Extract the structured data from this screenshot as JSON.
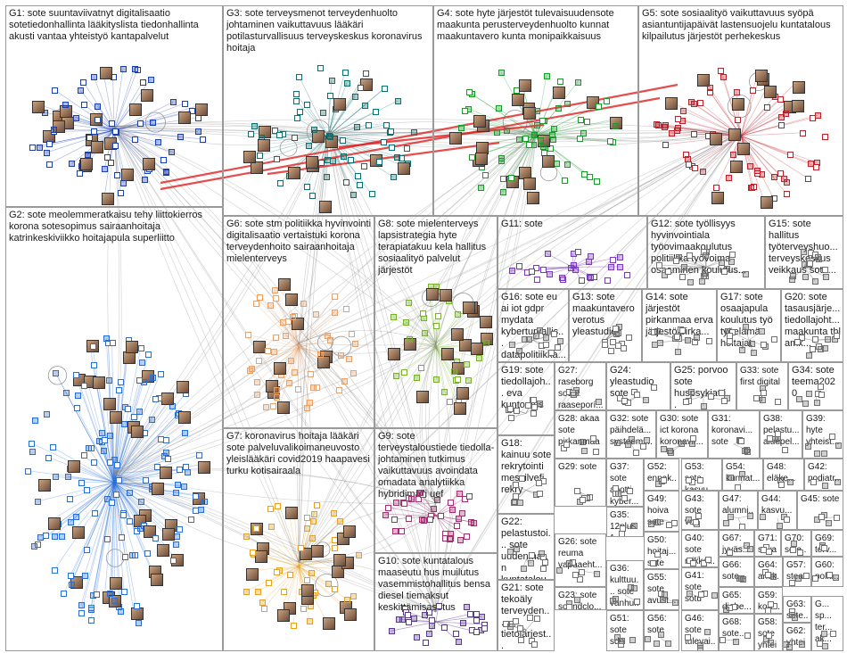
{
  "graph_title": "",
  "groups": [
    {
      "id": "G1",
      "label": "G1: sote suuntaviivatnyt digitalisaatio sotetiedonhallinta lääkityslista tiedonhallinta akusti vantaa yhteistyö kantapalvelut",
      "color": "#1a3fb0"
    },
    {
      "id": "G2",
      "label": "G2: sote meolemmeratkaisu tehy liittokierros korona sotesopimus sairaanhoitaja katrinkeskiviikko hoitajapula superliitto",
      "color": "#2a6fd6"
    },
    {
      "id": "G3",
      "label": "G3: sote terveysmenot terveydenhuolto johtaminen vaikuttavuus lääkäri potilasturvallisuus terveyskeskus koronavirus hoitaja",
      "color": "#0f6e6e"
    },
    {
      "id": "G4",
      "label": "G4: sote hyte järjestöt tulevaisuudensote maakunta perusterveydenhuolto kunnat maakuntavero kunta monipaikkaisuus",
      "color": "#1a9a2a"
    },
    {
      "id": "G5",
      "label": "G5: sote sosiaalityö vaikuttavuus syöpä asiantuntijapäivät lastensuojelu kuntatalous kilpailutus järjestöt perhekeskus",
      "color": "#c0202a"
    },
    {
      "id": "G6",
      "label": "G6: sote stm politiikka hyvinvointi digitalisaatio vertaistuki korona terveydenhoito sairaanhoitaja mielenterveys",
      "color": "#f0a060"
    },
    {
      "id": "G7",
      "label": "G7: koronavirus hoitaja lääkäri sote palveluvalikoimaneuvosto yleislääkäri covid2019 haapavesi turku kotisairaala",
      "color": "#e8a020"
    },
    {
      "id": "G8",
      "label": "G8: sote mielenterveys lapsistrategia hyte terapiatakuu kela hallitus sosiaalityö palvelut järjestöt",
      "color": "#7ab030"
    },
    {
      "id": "G9",
      "label": "G9: sote terveystaloustiede tiedolla­johtaminen tutkimus vaikuttavuus avoindata omadata analytiikka hybridimalli uef",
      "color": "#a03070"
    },
    {
      "id": "G10",
      "label": "G10: sote kuntatalous maaseutu hus muilutus vasemmistohallitus bensa diesel tiemaksut keskittämisasetus",
      "color": "#5a3a8a"
    },
    {
      "id": "G11",
      "label": "G11: sote",
      "color": "#7a3ac0"
    },
    {
      "id": "G12",
      "label": "G12: sote työllisyys hyvinvointiala työovimaakoulutus politiikka työvoima osaaminen koulutus...",
      "color": "#707070"
    },
    {
      "id": "G13",
      "label": "G13: sote maakuntavero verotus yleastudio",
      "color": "#707070"
    },
    {
      "id": "G14",
      "label": "G14: sote järjestöt pirkanmaa erva järjestötpirka...",
      "color": "#707070"
    },
    {
      "id": "G15",
      "label": "G15: sote hallitus työterveyshuo... terveyskeskus veikkaus sotu...",
      "color": "#707070"
    },
    {
      "id": "G16",
      "label": "G16: sote eu ai iot gdpr mydata kyberturvallis... datapolitiikka...",
      "color": "#707070"
    },
    {
      "id": "G17",
      "label": "G17: sote osaajapula koulutus työ työelämä hoitajat",
      "color": "#707070"
    },
    {
      "id": "G18",
      "label": "G18: kainuu sote rekrytointi messilvefi rekry",
      "color": "#707070"
    },
    {
      "id": "G19",
      "label": "G19: sote tiedollajoh... eva kuntoutus",
      "color": "#707070"
    },
    {
      "id": "G20",
      "label": "G20: sote tasausjärje... tiedollajoht... maakunta thl amk...",
      "color": "#707070"
    },
    {
      "id": "G21",
      "label": "G21: sote tekoäly terveyden... tietojärjest...",
      "color": "#707070"
    },
    {
      "id": "G22",
      "label": "G22: pelastustoi... sote uudenmaan kuntatalou...",
      "color": "#707070"
    },
    {
      "id": "G23",
      "label": "G23: sote soundclo...",
      "color": "#707070"
    },
    {
      "id": "G24",
      "label": "G24: yleastudio sote",
      "color": "#707070"
    },
    {
      "id": "G25",
      "label": "G25: porvoo sote huspsykiatri...",
      "color": "#707070"
    },
    {
      "id": "G26",
      "label": "G26: sote reuma vapaaeht...",
      "color": "#707070"
    },
    {
      "id": "G27",
      "label": "G27: raseborg sote raaseporí...",
      "color": "#707070"
    },
    {
      "id": "G28",
      "label": "G28: akaa sote pirkanmaa",
      "color": "#707070"
    },
    {
      "id": "G29",
      "label": "G29: sote",
      "color": "#707070"
    },
    {
      "id": "G30",
      "label": "G30: sote ict korona koronavir...",
      "color": "#707070"
    },
    {
      "id": "G31",
      "label": "G31: koronavi... sote",
      "color": "#707070"
    },
    {
      "id": "G32",
      "label": "G32: sote päihdelä... systeemi...",
      "color": "#707070"
    },
    {
      "id": "G33",
      "label": "G33: sote first digital",
      "color": "#707070"
    },
    {
      "id": "G34",
      "label": "G34: sote teema2020",
      "color": "#707070"
    },
    {
      "id": "G35",
      "label": "G35: 12plus1",
      "color": "#707070"
    },
    {
      "id": "G36",
      "label": "G36: kulttuu... sote vanhu...",
      "color": "#707070"
    },
    {
      "id": "G37",
      "label": "G37: sote apotti kyber...",
      "color": "#707070"
    },
    {
      "id": "G38",
      "label": "G38: pelastu... aluepel...",
      "color": "#707070"
    },
    {
      "id": "G39",
      "label": "G39: hyte yhteist...",
      "color": "#707070"
    },
    {
      "id": "G40",
      "label": "G40: sote mikkel...",
      "color": "#707070"
    },
    {
      "id": "G41",
      "label": "G41: sote sotu",
      "color": "#707070"
    },
    {
      "id": "G42",
      "label": "G42: podiatr...",
      "color": "#707070"
    },
    {
      "id": "G43",
      "label": "G43: sote vos",
      "color": "#707070"
    },
    {
      "id": "G44",
      "label": "G44: kasvu...",
      "color": "#707070"
    },
    {
      "id": "G45",
      "label": "G45: sote",
      "color": "#707070"
    },
    {
      "id": "G46",
      "label": "G46: sote tulevai...",
      "color": "#707070"
    },
    {
      "id": "G47",
      "label": "G47: alumni...",
      "color": "#707070"
    },
    {
      "id": "G48",
      "label": "G48: eläke...",
      "color": "#707070"
    },
    {
      "id": "G49",
      "label": "G49: hoiva sote",
      "color": "#707070"
    },
    {
      "id": "G50",
      "label": "G50: hoitaj... sote",
      "color": "#707070"
    },
    {
      "id": "G51",
      "label": "G51: sote sdp",
      "color": "#707070"
    },
    {
      "id": "G52",
      "label": "G52: ennak... yhteis...",
      "color": "#707070"
    },
    {
      "id": "G53",
      "label": "G53: sote kasvu...",
      "color": "#707070"
    },
    {
      "id": "G54",
      "label": "G54: kunnat...",
      "color": "#707070"
    },
    {
      "id": "G55",
      "label": "G55: sote avust...",
      "color": "#707070"
    },
    {
      "id": "G56",
      "label": "G56: sote",
      "color": "#707070"
    },
    {
      "id": "G57",
      "label": "G57: stea...",
      "color": "#707070"
    },
    {
      "id": "G58",
      "label": "G58: sote yhteis...",
      "color": "#707070"
    },
    {
      "id": "G59",
      "label": "G59: koro...",
      "color": "#707070"
    },
    {
      "id": "G60",
      "label": "G60: polit...",
      "color": "#707070"
    },
    {
      "id": "G61",
      "label": "G... sp... ter... ak...",
      "color": "#707070"
    },
    {
      "id": "G62",
      "label": "G62: yhteis...",
      "color": "#707070"
    },
    {
      "id": "G63",
      "label": "G63: sote...",
      "color": "#707070"
    },
    {
      "id": "G64",
      "label": "G64: arkik...",
      "color": "#707070"
    },
    {
      "id": "G65",
      "label": "G65: diabe...",
      "color": "#707070"
    },
    {
      "id": "G66",
      "label": "G66: sote...",
      "color": "#707070"
    },
    {
      "id": "G67",
      "label": "G67: jyväs...",
      "color": "#707070"
    },
    {
      "id": "G68",
      "label": "G68: sote...",
      "color": "#707070"
    },
    {
      "id": "G69",
      "label": "G69: terv...",
      "color": "#707070"
    },
    {
      "id": "G70",
      "label": "G70: sote...",
      "color": "#707070"
    },
    {
      "id": "G71",
      "label": "G71: sava...",
      "color": "#707070"
    }
  ]
}
